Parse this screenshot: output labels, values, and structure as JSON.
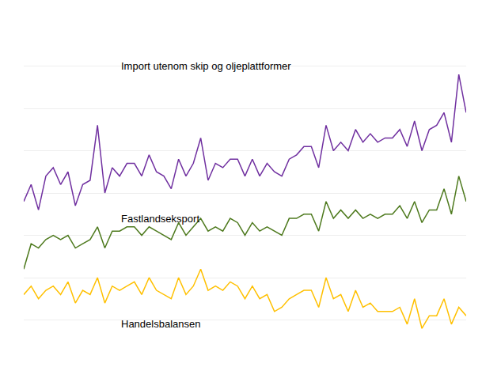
{
  "chart_data": {
    "type": "line",
    "categories": [
      null,
      null,
      null,
      null,
      null,
      null,
      null,
      null,
      null,
      null,
      null,
      null,
      null,
      null,
      null,
      null,
      null,
      null,
      null,
      null,
      null,
      null,
      null,
      null,
      null,
      null,
      null,
      null,
      null,
      null,
      null,
      null,
      null,
      null,
      null,
      null,
      null,
      null,
      null,
      null,
      null,
      null,
      null,
      null,
      null,
      null,
      null,
      null,
      null,
      null,
      null,
      null,
      null,
      null,
      null,
      null,
      null,
      null,
      null,
      null,
      null
    ],
    "series": [
      {
        "color": "#7030a0",
        "values": [
          38,
          42,
          36,
          44,
          46,
          42,
          45,
          37,
          42,
          43,
          56,
          40,
          46,
          44,
          47,
          47,
          44,
          49,
          45,
          44,
          41,
          48,
          44,
          47,
          53,
          43,
          47,
          46,
          48,
          48,
          44,
          48,
          44,
          47,
          45,
          44,
          48,
          49,
          51,
          51,
          46,
          56,
          50,
          52,
          50,
          55,
          52,
          54,
          52,
          53,
          53,
          55,
          51,
          57,
          50,
          55,
          56,
          59,
          52,
          68,
          59
        ]
      },
      {
        "color": "#4e7a1e",
        "values": [
          22,
          28,
          27,
          29,
          30,
          29,
          30,
          27,
          28,
          29,
          32,
          27,
          31,
          31,
          32,
          32,
          30,
          32,
          31,
          30,
          29,
          33,
          30,
          32,
          34,
          31,
          32,
          31,
          34,
          33,
          30,
          33,
          31,
          32,
          31,
          30,
          34,
          34,
          35,
          35,
          31,
          38,
          34,
          36,
          34,
          36,
          34,
          35,
          34,
          35,
          35,
          37,
          34,
          38,
          33,
          36,
          36,
          41,
          35,
          44,
          38
        ]
      },
      {
        "color": "#ffc000",
        "values": [
          16,
          18,
          15,
          17,
          18,
          16,
          19,
          14,
          17,
          16,
          20,
          14,
          18,
          17,
          18,
          19,
          16,
          20,
          17,
          16,
          15,
          20,
          16,
          18,
          22,
          17,
          18,
          17,
          19,
          18,
          15,
          18,
          15,
          16,
          12,
          13,
          15,
          16,
          17,
          17,
          13,
          20,
          15,
          16,
          12,
          17,
          13,
          14,
          12,
          12,
          12,
          13,
          9,
          15,
          8,
          11,
          11,
          15,
          9,
          13,
          11
        ]
      }
    ],
    "annotations": [
      {
        "text": "Import utenom skip og oljeplattformer",
        "x": 13,
        "y": 70
      },
      {
        "text": "Fastlandseksport",
        "x": 13,
        "y": 34
      },
      {
        "text": "Handelsbalansen",
        "x": 13,
        "y": 9
      }
    ],
    "ylim": [
      0,
      80
    ],
    "yticks": [
      0,
      10,
      20,
      30,
      40,
      50,
      60,
      70,
      80
    ],
    "grid": true,
    "tick_labels": false
  }
}
